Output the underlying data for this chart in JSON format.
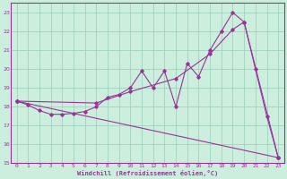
{
  "xlabel": "Windchill (Refroidissement éolien,°C)",
  "bg_color": "#cceedd",
  "line_color": "#993399",
  "grid_color": "#99ccbb",
  "spine_color": "#993399",
  "xlim": [
    -0.5,
    23.5
  ],
  "ylim": [
    15,
    23.5
  ],
  "xticks": [
    0,
    1,
    2,
    3,
    4,
    5,
    6,
    7,
    8,
    9,
    10,
    11,
    12,
    13,
    14,
    15,
    16,
    17,
    18,
    19,
    20,
    21,
    22,
    23
  ],
  "yticks": [
    15,
    16,
    17,
    18,
    19,
    20,
    21,
    22,
    23
  ],
  "line1_x": [
    0,
    1,
    2,
    3,
    4,
    5,
    6,
    7,
    8,
    9,
    10,
    11,
    12,
    13,
    14,
    15,
    16,
    17,
    18,
    19,
    20,
    21,
    22,
    23
  ],
  "line1_y": [
    18.3,
    18.1,
    17.8,
    17.6,
    17.6,
    17.65,
    17.75,
    18.0,
    18.5,
    18.65,
    19.0,
    19.9,
    19.0,
    19.9,
    18.0,
    20.3,
    19.6,
    21.0,
    22.0,
    23.0,
    22.5,
    20.0,
    17.5,
    15.3
  ],
  "line2_x": [
    0,
    23
  ],
  "line2_y": [
    18.3,
    15.3
  ],
  "line3_x": [
    0,
    7,
    10,
    14,
    17,
    19,
    20,
    23
  ],
  "line3_y": [
    18.3,
    18.2,
    18.8,
    19.5,
    20.8,
    22.1,
    22.5,
    15.3
  ],
  "tick_fontsize": 4.5,
  "xlabel_fontsize": 5.0
}
